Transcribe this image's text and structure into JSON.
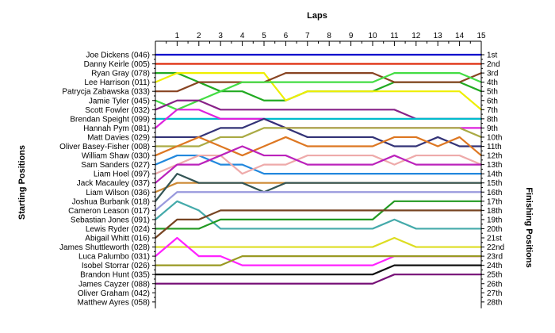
{
  "chart_data": {
    "type": "line",
    "title": "Laps",
    "ylabel_left": "Starting Positions",
    "ylabel_right": "Finishing Positions",
    "x": [
      1,
      2,
      3,
      4,
      5,
      6,
      7,
      8,
      9,
      10,
      11,
      12,
      13,
      14,
      15
    ],
    "x_ticks": [
      "1",
      "2",
      "3",
      "4",
      "5",
      "6",
      "7",
      "8",
      "9",
      "10",
      "11",
      "12",
      "13",
      "14",
      "15"
    ],
    "ylim": [
      1,
      28
    ],
    "y_inverted": true,
    "grid": false,
    "finishing_labels": [
      "1st",
      "2nd",
      "3rd",
      "4th",
      "5th",
      "6th",
      "7th",
      "8th",
      "9th",
      "10th",
      "11th",
      "12th",
      "13th",
      "14th",
      "15th",
      "16th",
      "17th",
      "18th",
      "19th",
      "20th",
      "21st",
      "22nd",
      "23rd",
      "24th",
      "25th",
      "26th",
      "27th",
      "28th"
    ],
    "series": [
      {
        "name": "Joe Dickens (046)",
        "color": "#0000cc",
        "start": 1,
        "values": [
          1,
          1,
          1,
          1,
          1,
          1,
          1,
          1,
          1,
          1,
          1,
          1,
          1,
          1,
          1
        ]
      },
      {
        "name": "Danny Keirle (005)",
        "color": "#dd2200",
        "start": 2,
        "values": [
          2,
          2,
          2,
          2,
          2,
          2,
          2,
          2,
          2,
          2,
          2,
          2,
          2,
          2,
          2
        ]
      },
      {
        "name": "Ryan Gray (078)",
        "color": "#22aa22",
        "start": 3,
        "values": [
          3,
          4,
          5,
          5,
          6,
          6,
          5,
          5,
          5,
          5,
          4,
          4,
          4,
          4,
          5
        ]
      },
      {
        "name": "Lee Harrison (011)",
        "color": "#eeee00",
        "start": 4,
        "values": [
          3,
          3,
          3,
          3,
          3,
          6,
          5,
          5,
          5,
          5,
          5,
          5,
          5,
          5,
          7
        ]
      },
      {
        "name": "Patrycja Zabawska (033)",
        "color": "#884422",
        "start": 5,
        "values": [
          5,
          4,
          4,
          4,
          4,
          3,
          3,
          3,
          3,
          3,
          4,
          4,
          4,
          4,
          3
        ]
      },
      {
        "name": "Jamie Tyler (045)",
        "color": "#44dd44",
        "start": 6,
        "values": [
          7,
          6,
          5,
          4,
          4,
          4,
          4,
          4,
          4,
          4,
          3,
          3,
          3,
          3,
          4
        ]
      },
      {
        "name": "Scott Fowler (032)",
        "color": "#882288",
        "start": 7,
        "values": [
          6,
          6,
          7,
          7,
          7,
          7,
          7,
          7,
          7,
          7,
          7,
          8,
          8,
          8,
          8
        ]
      },
      {
        "name": "Brendan Speight (099)",
        "color": "#00bbcc",
        "start": 8,
        "values": [
          8,
          8,
          8,
          8,
          8,
          8,
          8,
          8,
          8,
          8,
          8,
          8,
          8,
          8,
          8
        ]
      },
      {
        "name": "Hannah Pym (081)",
        "color": "#dd22dd",
        "start": 9,
        "values": [
          7,
          7,
          8,
          8,
          8,
          9,
          9,
          9,
          9,
          9,
          9,
          9,
          9,
          9,
          9
        ]
      },
      {
        "name": "Matt Davies (029)",
        "color": "#333377",
        "start": 10,
        "values": [
          10,
          10,
          9,
          9,
          8,
          9,
          10,
          10,
          10,
          10,
          11,
          11,
          10,
          11,
          11
        ]
      },
      {
        "name": "Oliver Basey-Fisher (008)",
        "color": "#aaaa44",
        "start": 11,
        "values": [
          11,
          11,
          10,
          10,
          9,
          9,
          9,
          9,
          9,
          9,
          9,
          9,
          9,
          9,
          10
        ]
      },
      {
        "name": "William Shaw (030)",
        "color": "#dd7722",
        "start": 12,
        "values": [
          11,
          10,
          11,
          12,
          11,
          10,
          11,
          11,
          11,
          11,
          10,
          10,
          11,
          10,
          12
        ]
      },
      {
        "name": "Sam Sanders (027)",
        "color": "#2288dd",
        "start": 13,
        "values": [
          12,
          12,
          13,
          13,
          14,
          14,
          14,
          14,
          14,
          14,
          14,
          14,
          14,
          14,
          14
        ]
      },
      {
        "name": "Liam Hoel (097)",
        "color": "#eeaaaa",
        "start": 14,
        "values": [
          13,
          12,
          12,
          14,
          13,
          13,
          12,
          12,
          12,
          12,
          13,
          12,
          12,
          12,
          13
        ]
      },
      {
        "name": "Jack Macauley (037)",
        "color": "#bb22bb",
        "start": 15,
        "values": [
          13,
          13,
          12,
          11,
          12,
          12,
          13,
          13,
          13,
          13,
          12,
          13,
          13,
          13,
          13
        ]
      },
      {
        "name": "Liam Wilson (036)",
        "color": "#cc8833",
        "start": 16,
        "values": [
          15,
          15,
          15,
          15,
          15,
          15,
          15,
          15,
          15,
          15,
          15,
          15,
          15,
          15,
          15
        ]
      },
      {
        "name": "Joshua Burbank (018)",
        "color": "#335555",
        "start": 17,
        "values": [
          14,
          15,
          15,
          15,
          16,
          15,
          15,
          15,
          15,
          15,
          15,
          15,
          15,
          15,
          15
        ]
      },
      {
        "name": "Cameron Leason (017)",
        "color": "#9999dd",
        "start": 18,
        "values": [
          16,
          16,
          16,
          16,
          16,
          16,
          16,
          16,
          16,
          16,
          16,
          16,
          16,
          16,
          16
        ]
      },
      {
        "name": "Sebastian Jones (091)",
        "color": "#44aaaa",
        "start": 19,
        "values": [
          17,
          18,
          20,
          20,
          20,
          20,
          20,
          20,
          20,
          20,
          19,
          20,
          20,
          20,
          20
        ]
      },
      {
        "name": "Lewis Ryder (024)",
        "color": "#229922",
        "start": 20,
        "values": [
          20,
          20,
          19,
          19,
          19,
          19,
          19,
          19,
          19,
          19,
          17,
          17,
          17,
          17,
          17
        ]
      },
      {
        "name": "Abigail Whitt (016)",
        "color": "#774422",
        "start": 21,
        "values": [
          19,
          19,
          18,
          18,
          18,
          18,
          18,
          18,
          18,
          18,
          18,
          18,
          18,
          18,
          18
        ]
      },
      {
        "name": "James Shuttleworth (028)",
        "color": "#dddd22",
        "start": 22,
        "values": [
          22,
          22,
          22,
          22,
          22,
          22,
          22,
          22,
          22,
          22,
          21,
          22,
          22,
          22,
          22
        ]
      },
      {
        "name": "Luca Palumbo (031)",
        "color": "#ff22ff",
        "start": 23,
        "values": [
          21,
          23,
          23,
          24,
          24,
          24,
          24,
          24,
          24,
          24,
          23,
          23,
          23,
          23,
          23
        ]
      },
      {
        "name": "Isobel Storrar (026)",
        "color": "#999922",
        "start": 24,
        "values": [
          24,
          24,
          24,
          23,
          23,
          23,
          23,
          23,
          23,
          23,
          23,
          23,
          23,
          23,
          23
        ]
      },
      {
        "name": "Brandon Hunt (035)",
        "color": "#111111",
        "start": 25,
        "values": [
          25,
          25,
          25,
          25,
          25,
          25,
          25,
          25,
          25,
          25,
          24,
          24,
          24,
          24,
          24
        ]
      },
      {
        "name": "James Cayzer (088)",
        "color": "#771177",
        "start": 26,
        "values": [
          26,
          26,
          26,
          26,
          26,
          26,
          26,
          26,
          26,
          26,
          25,
          25,
          25,
          25,
          25
        ]
      }
    ],
    "starting_labels": [
      "Joe Dickens (046)",
      "Danny Keirle (005)",
      "Ryan Gray (078)",
      "Lee Harrison (011)",
      "Patrycja Zabawska (033)",
      "Jamie Tyler (045)",
      "Scott Fowler (032)",
      "Brendan Speight (099)",
      "Hannah Pym (081)",
      "Matt Davies (029)",
      "Oliver Basey-Fisher (008)",
      "William Shaw (030)",
      "Sam Sanders (027)",
      "Liam Hoel (097)",
      "Jack Macauley (037)",
      "Liam Wilson (036)",
      "Joshua Burbank (018)",
      "Cameron Leason (017)",
      "Sebastian Jones (091)",
      "Lewis Ryder (024)",
      "Abigail Whitt (016)",
      "James Shuttleworth (028)",
      "Luca Palumbo (031)",
      "Isobel Storrar (026)",
      "Brandon Hunt (035)",
      "James Cayzer (088)",
      "Oliver Graham (042)",
      "Matthew Ayres (058)"
    ]
  }
}
